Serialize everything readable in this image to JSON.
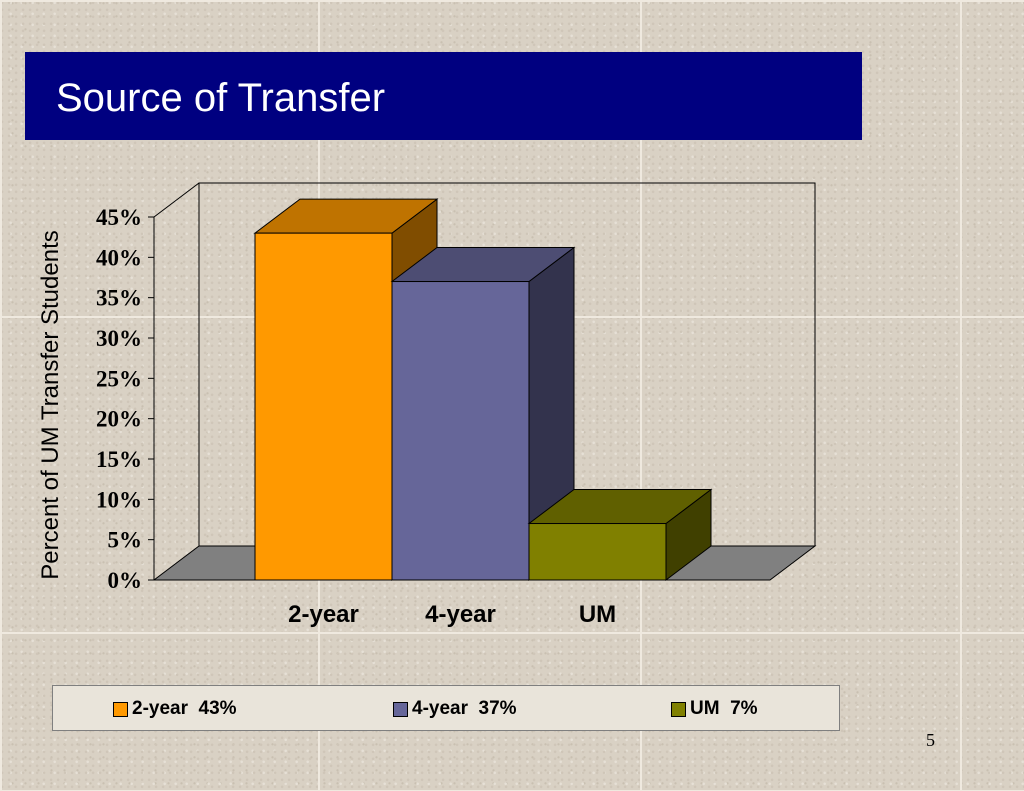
{
  "slide": {
    "title": "Source of Transfer",
    "page_number": "5"
  },
  "colors": {
    "title_bar": "#000080",
    "title_text": "#ffffff"
  },
  "chart_data": {
    "type": "bar",
    "categories": [
      "2-year",
      "4-year",
      "UM"
    ],
    "values": [
      43,
      37,
      7
    ],
    "value_unit": "%",
    "ylabel": "Percent of UM Transfer Students",
    "ylim": [
      0,
      45
    ],
    "yticks": [
      "0%",
      "5%",
      "10%",
      "15%",
      "20%",
      "25%",
      "30%",
      "35%",
      "40%",
      "45%"
    ],
    "colors": [
      "#ff9900",
      "#666699",
      "#808000"
    ],
    "grid": false,
    "legend_position": "bottom",
    "legend": [
      {
        "label": "2-year  43%",
        "color": "#ff9900"
      },
      {
        "label": "4-year  37%",
        "color": "#666699"
      },
      {
        "label": "UM  7%",
        "color": "#808000"
      }
    ],
    "style": "3d-column"
  }
}
